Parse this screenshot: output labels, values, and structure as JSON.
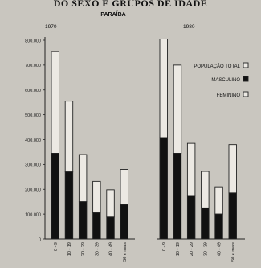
{
  "header": {
    "title": "DO SEXO E GRUPOS DE IDADE"
  },
  "chart_data": {
    "type": "bar",
    "region_title": "PARAÍBA",
    "ylim": [
      0,
      800000
    ],
    "y_ticks": [
      0,
      100000,
      200000,
      300000,
      400000,
      500000,
      600000,
      700000,
      800000
    ],
    "y_tick_labels": [
      "0",
      "100.000",
      "200.000",
      "300.000",
      "400.000",
      "500.000",
      "600.000",
      "700.000",
      "800.000"
    ],
    "categories": [
      "0 - 9",
      "10 - 19",
      "20 - 29",
      "30 - 39",
      "40 - 49",
      "50 e mais"
    ],
    "legend": {
      "placement": "right",
      "items": [
        {
          "label": "POPULAÇÃO TOTAL",
          "swatch": "outline"
        },
        {
          "label": "MASCULINO",
          "swatch": "filled"
        },
        {
          "label": "FEMININO",
          "swatch": "outline"
        }
      ]
    },
    "colors": {
      "masculino": "#111111",
      "feminino": "#ece9e3",
      "stroke": "#222222"
    },
    "panels": [
      {
        "year": "1970",
        "series": [
          {
            "name": "MASCULINO",
            "values": [
              345000,
              270000,
              150000,
              105000,
              88000,
              138000
            ]
          },
          {
            "name": "POPULAÇÃO TOTAL",
            "values": [
              755000,
              555000,
              340000,
              232000,
              198000,
              280000
            ]
          }
        ]
      },
      {
        "year": "1980",
        "series": [
          {
            "name": "MASCULINO",
            "values": [
              408000,
              345000,
              175000,
              125000,
              100000,
              185000
            ]
          },
          {
            "name": "POPULAÇÃO TOTAL",
            "values": [
              805000,
              700000,
              385000,
              272000,
              210000,
              380000
            ]
          }
        ]
      }
    ]
  }
}
